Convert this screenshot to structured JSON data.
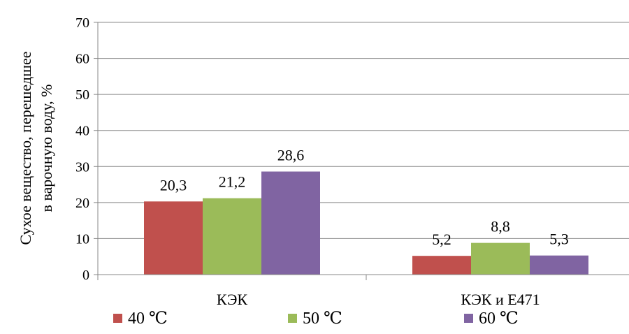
{
  "chart_data": {
    "type": "bar",
    "title": "",
    "ylabel_lines": [
      "Сухое вещество, перешедшее",
      "в варочную воду, %"
    ],
    "xlabel": "",
    "ylim": [
      0,
      70
    ],
    "yticks": [
      "0",
      "10",
      "20",
      "30",
      "40",
      "50",
      "60",
      "70"
    ],
    "grid": true,
    "legend_position": "bottom",
    "categories": [
      "КЭК",
      "КЭК и Е471"
    ],
    "series": [
      {
        "name": "40 ℃",
        "color": "#c0504d",
        "values": [
          20.3,
          5.2
        ],
        "labels": [
          "20,3",
          "5,2"
        ]
      },
      {
        "name": "50 ℃",
        "color": "#9bbb59",
        "values": [
          21.2,
          8.8
        ],
        "labels": [
          "21,2",
          "8,8"
        ]
      },
      {
        "name": "60 ℃",
        "color": "#8064a2",
        "values": [
          28.6,
          5.3
        ],
        "labels": [
          "28,6",
          "5,3"
        ]
      }
    ]
  }
}
